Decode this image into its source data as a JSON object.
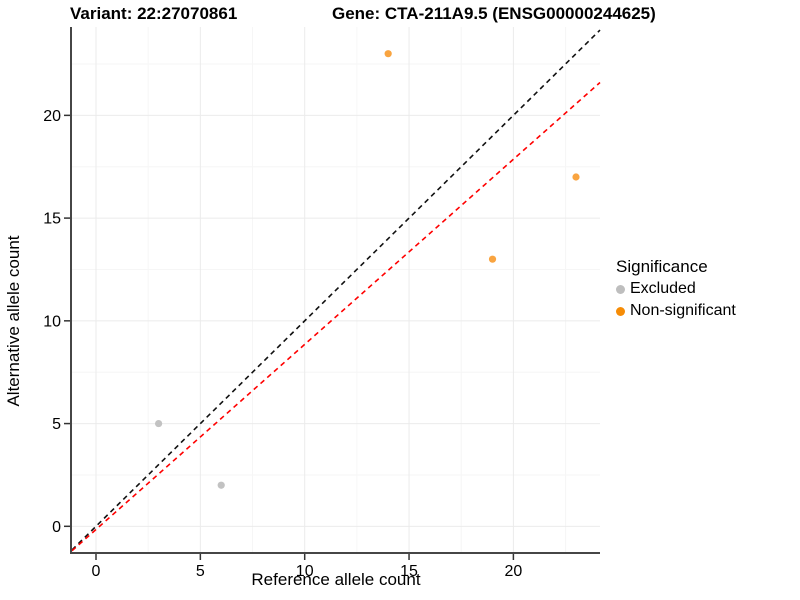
{
  "titles": {
    "variant": "Variant: 22:27070861",
    "gene": "Gene: CTA-211A9.5 (ENSG00000244625)"
  },
  "chart_data": {
    "type": "scatter",
    "xlabel": "Reference allele count",
    "ylabel": "Alternative allele count",
    "xlim": [
      -1.15,
      24.15
    ],
    "ylim": [
      -1.25,
      24.3
    ],
    "xticks": [
      0,
      5,
      10,
      15,
      20
    ],
    "yticks": [
      0,
      5,
      10,
      15,
      20
    ],
    "xticks_minor": [
      2.5,
      7.5,
      12.5,
      17.5,
      22.5
    ],
    "yticks_minor": [
      2.5,
      7.5,
      12.5,
      17.5,
      22.5
    ],
    "grid": {
      "major_color": "#EBEBEB",
      "minor_color": "#F6F6F6"
    },
    "axis_line_color": "#464646",
    "tick_color": "#333333",
    "series": [
      {
        "name": "Excluded",
        "legend_color": "#BEBEBE",
        "point_color": "#C2C2C2",
        "points": [
          [
            3,
            5
          ],
          [
            6,
            2
          ]
        ]
      },
      {
        "name": "Non-significant",
        "legend_color": "#F68C06",
        "point_color": "#F9A440",
        "points": [
          [
            14,
            23
          ],
          [
            19,
            13
          ],
          [
            23,
            17
          ]
        ]
      }
    ],
    "lines": [
      {
        "name": "identity-line",
        "color": "#111111",
        "dash": "5 4",
        "points": [
          [
            -1.15,
            -1.15
          ],
          [
            24.15,
            24.15
          ]
        ]
      },
      {
        "name": "fit-line",
        "color": "#FF0000",
        "dash": "5 4",
        "points": [
          [
            -1.15,
            -1.19
          ],
          [
            24.15,
            21.6
          ]
        ]
      }
    ],
    "legend": {
      "title": "Significance",
      "position": "right",
      "entries": [
        {
          "label": "Excluded"
        },
        {
          "label": "Non-significant"
        }
      ]
    }
  }
}
